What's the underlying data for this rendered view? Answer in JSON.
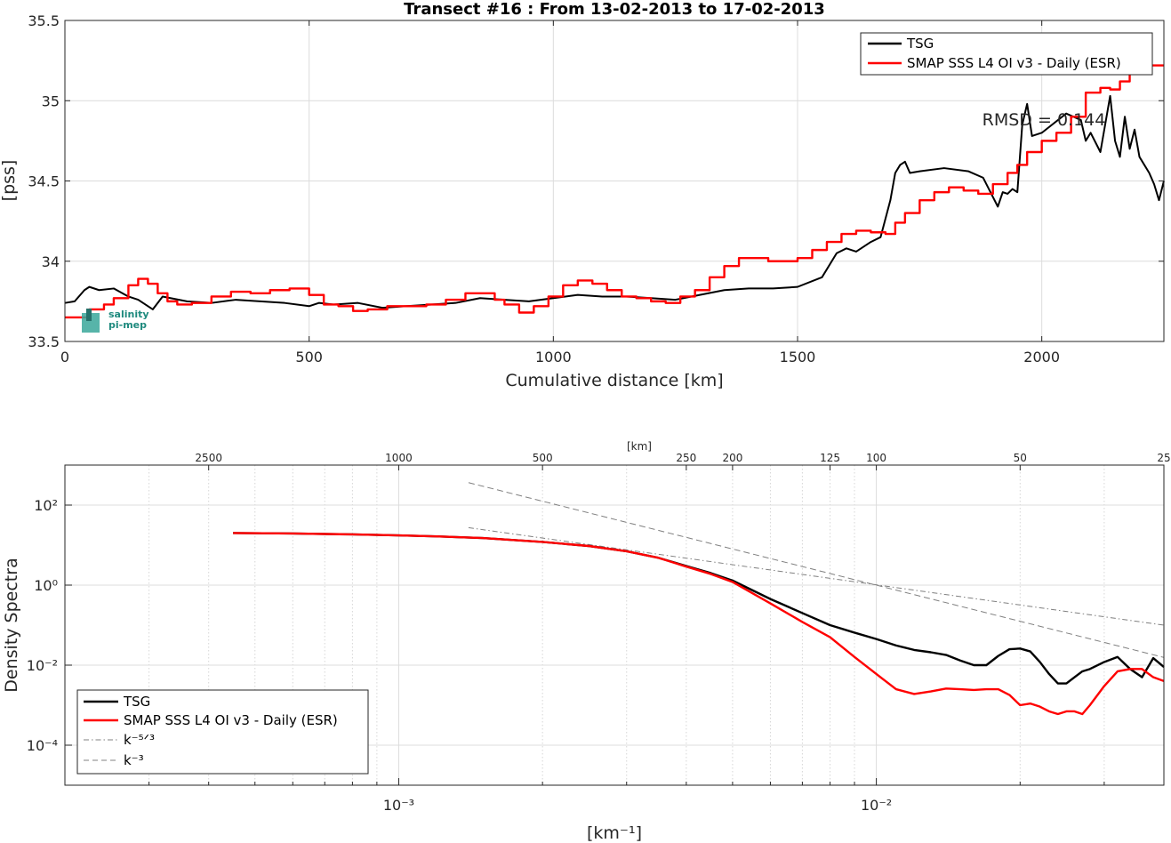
{
  "chart_data": [
    {
      "type": "line",
      "title": "Transect #16 : From 13-02-2013 to 17-02-2013",
      "xlabel": "Cumulative distance [km]",
      "ylabel": "[pss]",
      "xlim": [
        0,
        2250
      ],
      "ylim": [
        33.5,
        35.5
      ],
      "xticks": [
        0,
        500,
        1000,
        1500,
        2000
      ],
      "yticks": [
        33.5,
        34,
        34.5,
        35,
        35.5
      ],
      "xtick_labels": [
        "0",
        "500",
        "1000",
        "1500",
        "2000"
      ],
      "ytick_labels": [
        "33.5",
        "34",
        "34.5",
        "35",
        "35.5"
      ],
      "grid": true,
      "legend_position": "top-right",
      "annotation": "RMSD = 0.144",
      "logo_text": [
        "salinity",
        "pi-mep"
      ],
      "series": [
        {
          "name": "TSG",
          "color": "#000000",
          "x": [
            0,
            20,
            40,
            50,
            70,
            100,
            130,
            150,
            180,
            200,
            250,
            300,
            350,
            400,
            450,
            500,
            520,
            550,
            600,
            650,
            700,
            750,
            800,
            850,
            900,
            950,
            1000,
            1050,
            1100,
            1150,
            1200,
            1250,
            1300,
            1350,
            1400,
            1450,
            1500,
            1550,
            1580,
            1600,
            1620,
            1650,
            1670,
            1690,
            1700,
            1710,
            1720,
            1730,
            1750,
            1800,
            1850,
            1880,
            1900,
            1910,
            1920,
            1930,
            1940,
            1950,
            1960,
            1970,
            1980,
            2000,
            2050,
            2080,
            2090,
            2100,
            2120,
            2140,
            2150,
            2160,
            2170,
            2180,
            2190,
            2200,
            2220,
            2230,
            2240,
            2250
          ],
          "y": [
            33.74,
            33.75,
            33.82,
            33.84,
            33.82,
            33.83,
            33.78,
            33.76,
            33.7,
            33.78,
            33.75,
            33.74,
            33.76,
            33.75,
            33.74,
            33.72,
            33.74,
            33.73,
            33.74,
            33.71,
            33.72,
            33.73,
            33.74,
            33.77,
            33.76,
            33.75,
            33.77,
            33.79,
            33.78,
            33.78,
            33.77,
            33.76,
            33.79,
            33.82,
            33.83,
            33.83,
            33.84,
            33.9,
            34.05,
            34.08,
            34.06,
            34.12,
            34.15,
            34.38,
            34.55,
            34.6,
            34.62,
            34.55,
            34.56,
            34.58,
            34.56,
            34.52,
            34.4,
            34.34,
            34.43,
            34.42,
            34.45,
            34.43,
            34.85,
            34.98,
            34.78,
            34.8,
            34.92,
            34.88,
            34.75,
            34.8,
            34.68,
            35.03,
            34.75,
            34.65,
            34.9,
            34.7,
            34.82,
            34.65,
            34.55,
            34.48,
            34.38,
            34.5
          ]
        },
        {
          "name": "SMAP SSS L4 OI v3 - Daily (ESR)",
          "color": "#ff0000",
          "x": [
            0,
            50,
            80,
            100,
            130,
            150,
            170,
            190,
            210,
            230,
            260,
            300,
            340,
            380,
            420,
            460,
            500,
            530,
            560,
            590,
            620,
            660,
            700,
            740,
            780,
            820,
            860,
            880,
            900,
            930,
            960,
            990,
            1020,
            1050,
            1080,
            1110,
            1140,
            1170,
            1200,
            1230,
            1260,
            1290,
            1320,
            1350,
            1380,
            1410,
            1440,
            1470,
            1500,
            1530,
            1560,
            1590,
            1620,
            1650,
            1680,
            1700,
            1720,
            1750,
            1780,
            1810,
            1840,
            1870,
            1900,
            1930,
            1950,
            1970,
            2000,
            2030,
            2060,
            2090,
            2120,
            2140,
            2160,
            2180,
            2200,
            2220,
            2250
          ],
          "y": [
            33.65,
            33.7,
            33.73,
            33.77,
            33.85,
            33.89,
            33.86,
            33.8,
            33.75,
            33.73,
            33.74,
            33.78,
            33.81,
            33.8,
            33.82,
            33.83,
            33.79,
            33.73,
            33.72,
            33.69,
            33.7,
            33.72,
            33.72,
            33.73,
            33.76,
            33.8,
            33.8,
            33.76,
            33.73,
            33.68,
            33.72,
            33.78,
            33.85,
            33.88,
            33.86,
            33.82,
            33.78,
            33.77,
            33.75,
            33.74,
            33.78,
            33.82,
            33.9,
            33.97,
            34.02,
            34.02,
            34.0,
            34.0,
            34.02,
            34.07,
            34.12,
            34.17,
            34.19,
            34.18,
            34.17,
            34.24,
            34.3,
            34.38,
            34.43,
            34.46,
            34.44,
            34.42,
            34.48,
            34.55,
            34.6,
            34.68,
            34.75,
            34.8,
            34.9,
            35.05,
            35.08,
            35.07,
            35.12,
            35.17,
            35.22,
            35.22,
            35.22
          ]
        }
      ]
    },
    {
      "type": "line",
      "title": "",
      "xlabel": "[km⁻¹]",
      "ylabel": "Density Spectra",
      "top_axis_label": "[km]",
      "xscale": "log",
      "yscale": "log",
      "xlim": [
        0.0002,
        0.04
      ],
      "ylim": [
        1e-05,
        1000
      ],
      "xtick_labels": [
        "10⁻³",
        "10⁻²"
      ],
      "ytick_labels": [
        "10²",
        "10⁰",
        "10⁻²",
        "10⁻⁴"
      ],
      "top_ticks_km": [
        2500,
        1000,
        500,
        250,
        200,
        125,
        100,
        50,
        25
      ],
      "grid": true,
      "legend_position": "bottom-left",
      "series": [
        {
          "name": "TSG",
          "color": "#000000",
          "x": [
            0.00045,
            0.0006,
            0.0008,
            0.001,
            0.0012,
            0.0015,
            0.002,
            0.0025,
            0.003,
            0.0035,
            0.004,
            0.0045,
            0.005,
            0.006,
            0.007,
            0.008,
            0.009,
            0.01,
            0.011,
            0.012,
            0.013,
            0.014,
            0.015,
            0.016,
            0.017,
            0.018,
            0.019,
            0.02,
            0.021,
            0.022,
            0.023,
            0.024,
            0.025,
            0.026,
            0.027,
            0.028,
            0.03,
            0.032,
            0.034,
            0.036,
            0.038,
            0.04
          ],
          "y": [
            20,
            19.5,
            18.5,
            17.5,
            16.5,
            15,
            12,
            9.5,
            7,
            4.8,
            3.0,
            2.0,
            1.3,
            0.45,
            0.2,
            0.1,
            0.065,
            0.045,
            0.031,
            0.024,
            0.021,
            0.018,
            0.013,
            0.01,
            0.01,
            0.017,
            0.025,
            0.026,
            0.022,
            0.012,
            0.006,
            0.0035,
            0.0035,
            0.005,
            0.007,
            0.008,
            0.012,
            0.016,
            0.008,
            0.005,
            0.015,
            0.009
          ]
        },
        {
          "name": "SMAP SSS L4 OI v3 - Daily (ESR)",
          "color": "#ff0000",
          "x": [
            0.00045,
            0.0006,
            0.0008,
            0.001,
            0.0012,
            0.0015,
            0.002,
            0.0025,
            0.003,
            0.0035,
            0.004,
            0.0045,
            0.005,
            0.006,
            0.007,
            0.008,
            0.009,
            0.01,
            0.011,
            0.012,
            0.013,
            0.014,
            0.015,
            0.016,
            0.017,
            0.018,
            0.019,
            0.02,
            0.021,
            0.022,
            0.023,
            0.024,
            0.025,
            0.026,
            0.027,
            0.028,
            0.03,
            0.032,
            0.034,
            0.036,
            0.038,
            0.04
          ],
          "y": [
            20,
            19.5,
            18.5,
            17.5,
            16.5,
            15,
            12,
            9.5,
            7,
            4.8,
            2.9,
            1.9,
            1.2,
            0.35,
            0.12,
            0.05,
            0.016,
            0.006,
            0.0025,
            0.0019,
            0.0022,
            0.0026,
            0.0025,
            0.0024,
            0.0025,
            0.0025,
            0.0018,
            0.001,
            0.0011,
            0.00092,
            0.0007,
            0.0006,
            0.0007,
            0.0007,
            0.0006,
            0.001,
            0.003,
            0.007,
            0.008,
            0.008,
            0.005,
            0.004
          ]
        },
        {
          "name": "k⁻⁵ᐟ³",
          "color": "#808080",
          "dash": "dashdot",
          "x": [
            0.0014,
            0.04
          ],
          "y": [
            27.3,
            0.1
          ]
        },
        {
          "name": "k⁻³",
          "color": "#808080",
          "dash": "dashed",
          "x": [
            0.0014,
            0.04
          ],
          "y": [
            364,
            0.0156
          ]
        }
      ]
    }
  ]
}
